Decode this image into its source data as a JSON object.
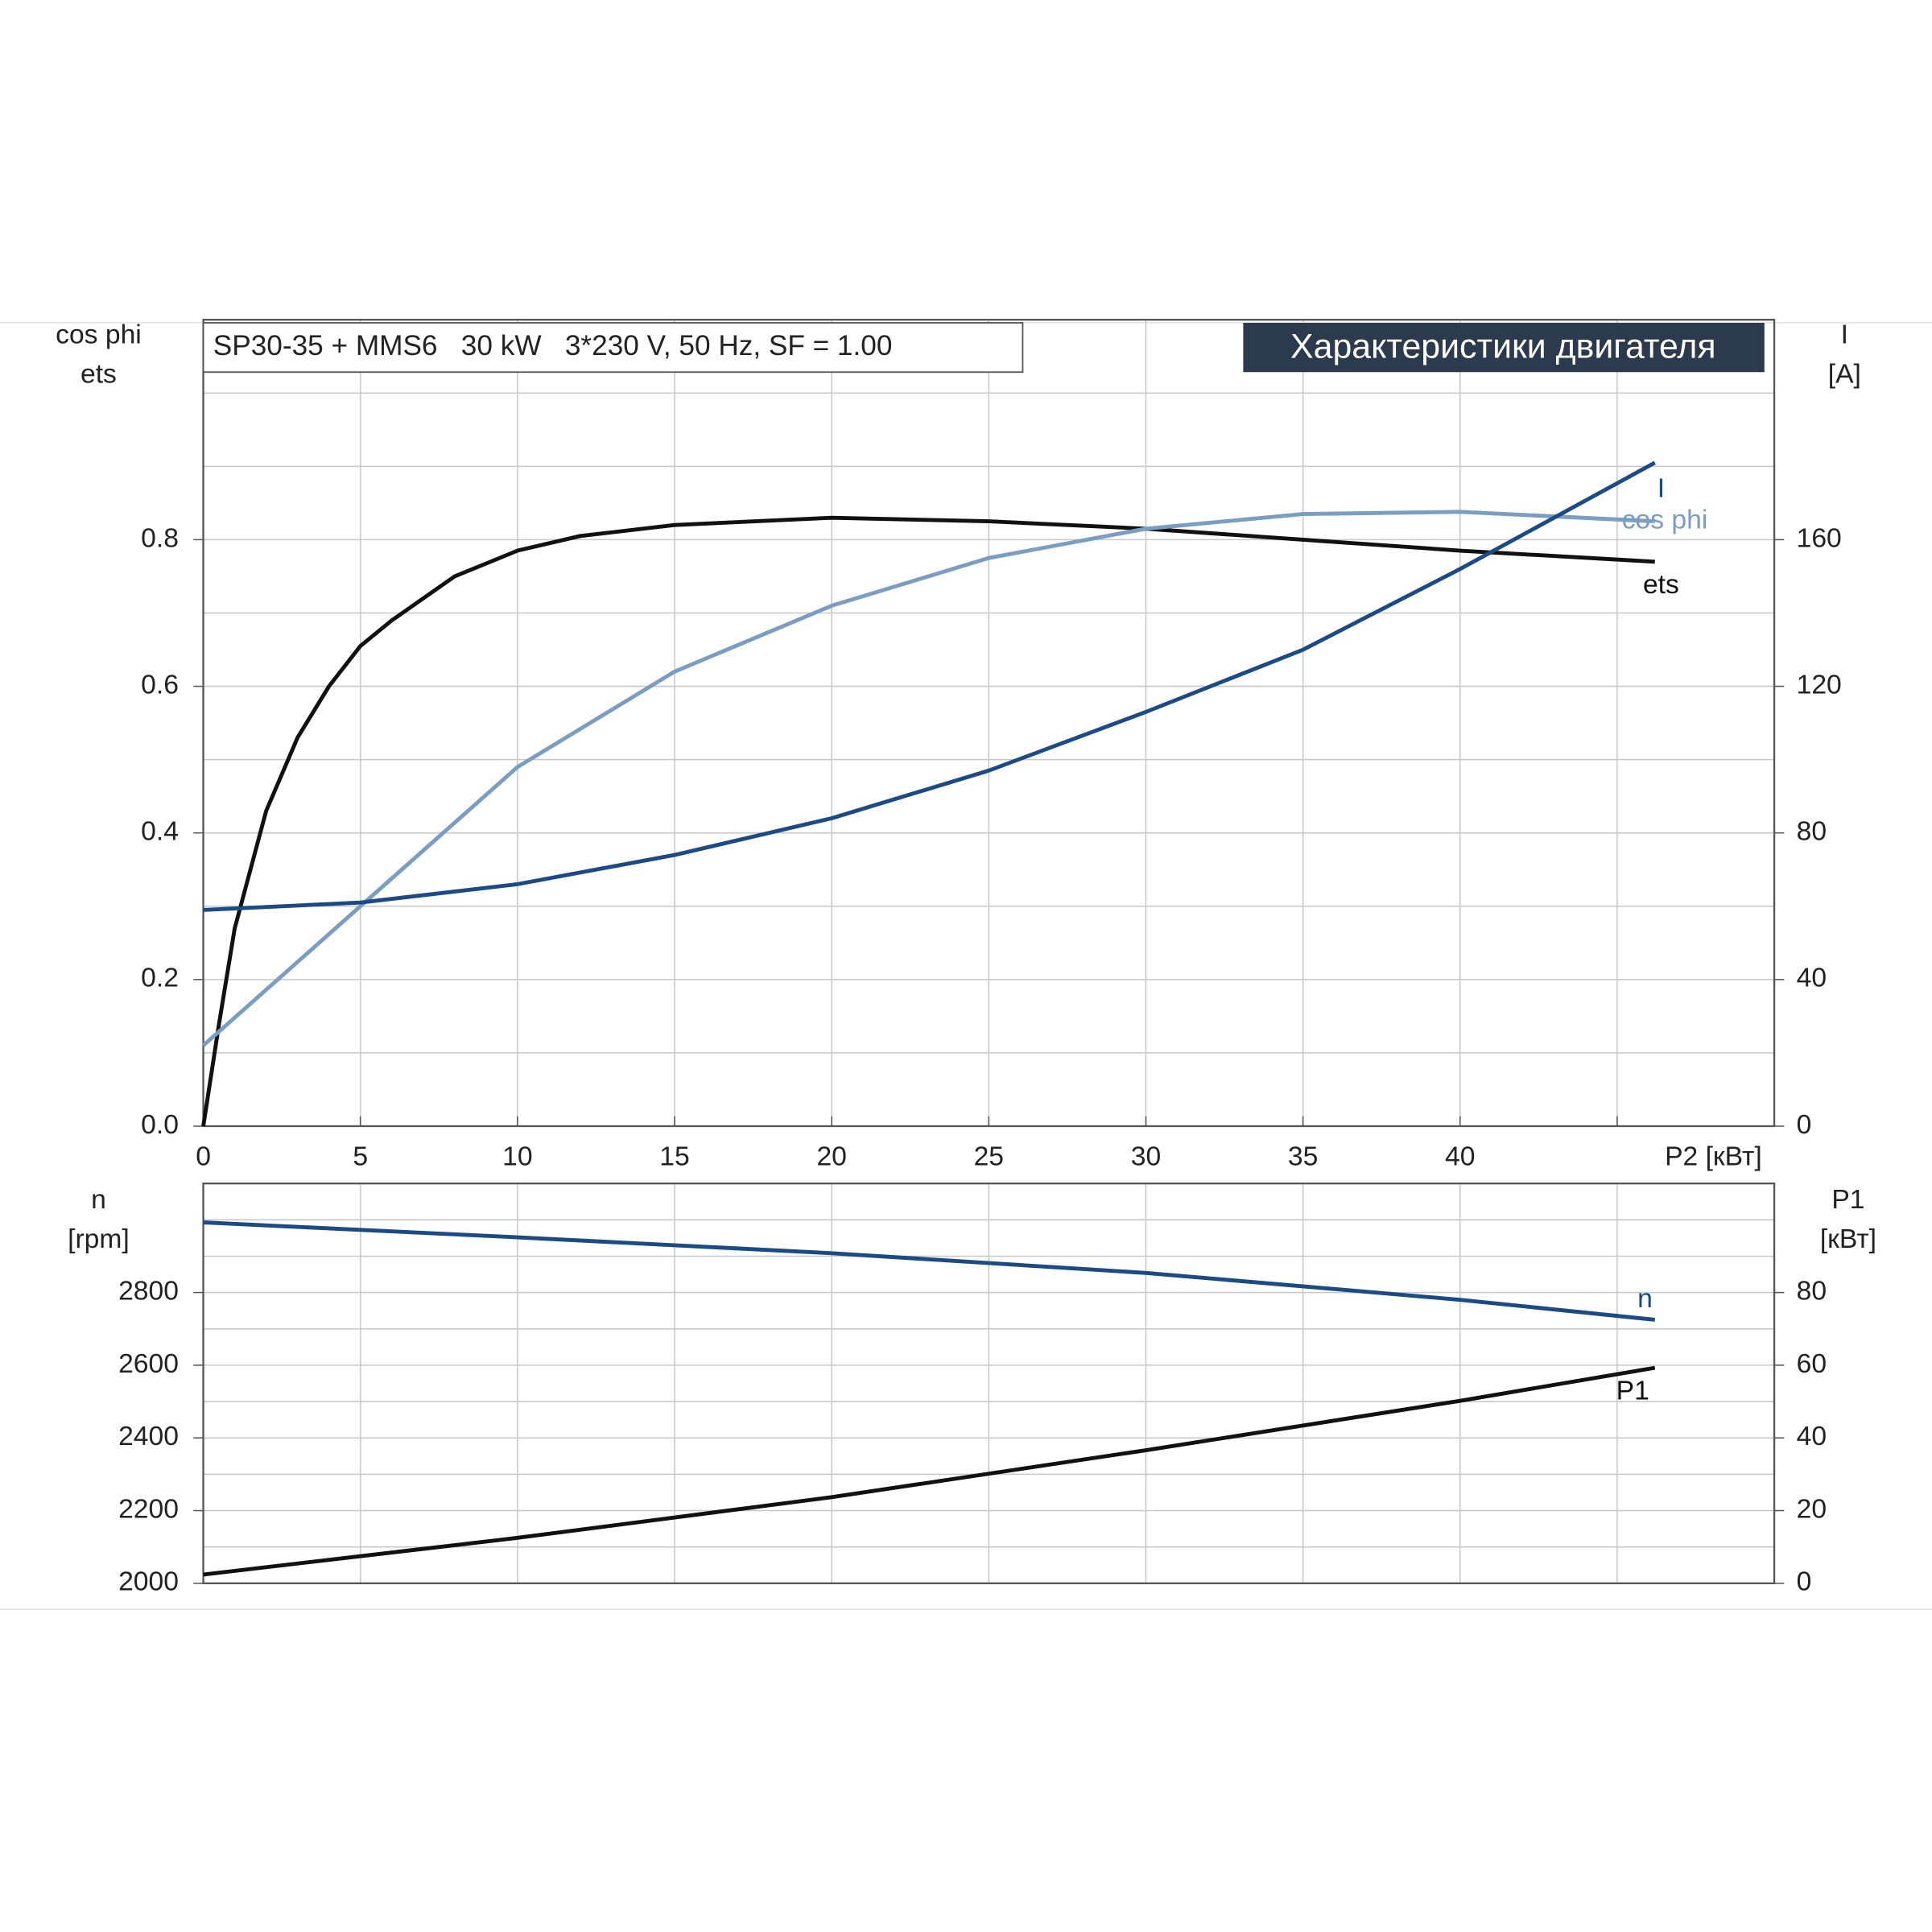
{
  "chart_data": [
    {
      "type": "line",
      "header": "SP30-35 + MMS6   30 kW   3*230 V, 50 Hz, SF = 1.00",
      "title": "Характеристики двигателя",
      "y_label": [
        "cos phi",
        "ets"
      ],
      "y2_label": [
        "I",
        "[A]"
      ],
      "x_label": "P2 [кВт]",
      "xlim": [
        0,
        50
      ],
      "xticks": [
        0,
        5,
        10,
        15,
        20,
        25,
        30,
        35,
        40
      ],
      "ylim": [
        0,
        1.1
      ],
      "yticks": [
        {
          "value": 0,
          "label": "0.0"
        },
        0.2,
        0.4,
        0.6,
        0.8
      ],
      "y2lim": [
        0,
        220
      ],
      "y2ticks": [
        0,
        40,
        80,
        120,
        160
      ],
      "grid": true,
      "series": [
        {
          "name": "ets",
          "color": "#111111",
          "x": [
            0,
            0.5,
            1,
            2,
            3,
            4,
            5,
            6,
            8,
            10,
            12,
            15,
            20,
            25,
            30,
            35,
            40,
            46.2
          ],
          "values": [
            0,
            0.14,
            0.27,
            0.43,
            0.53,
            0.6,
            0.655,
            0.69,
            0.75,
            0.785,
            0.805,
            0.82,
            0.83,
            0.825,
            0.815,
            0.8,
            0.785,
            0.77
          ]
        },
        {
          "name": "cos phi",
          "color": "#7b9dc2",
          "x": [
            0,
            5,
            10,
            15,
            20,
            25,
            30,
            35,
            40,
            46.2
          ],
          "values": [
            0.11,
            0.3,
            0.49,
            0.62,
            0.71,
            0.775,
            0.815,
            0.835,
            0.838,
            0.825
          ]
        },
        {
          "name": "I",
          "color": "#1c4a85",
          "axis": "y2",
          "x": [
            0,
            5,
            10,
            15,
            20,
            25,
            30,
            35,
            40,
            46.2
          ],
          "values": [
            59,
            61,
            66,
            74,
            84,
            97,
            113,
            130,
            152,
            181
          ]
        }
      ]
    },
    {
      "type": "line",
      "y_label": [
        "n",
        "[rpm]"
      ],
      "y2_label": [
        "P1",
        "[кВт]"
      ],
      "xlim": [
        0,
        50
      ],
      "ylim": [
        2000,
        3100
      ],
      "yticks": [
        2000,
        2200,
        2400,
        2600,
        2800
      ],
      "y2lim": [
        0,
        110
      ],
      "y2ticks": [
        0,
        20,
        40,
        60,
        80
      ],
      "grid": true,
      "series": [
        {
          "name": "n",
          "color": "#1c4a85",
          "x": [
            0,
            10,
            20,
            30,
            40,
            46.2
          ],
          "values": [
            2993,
            2952,
            2908,
            2854,
            2780,
            2725
          ]
        },
        {
          "name": "P1",
          "color": "#111111",
          "axis": "y2",
          "x": [
            0,
            10,
            20,
            30,
            40,
            46.2
          ],
          "values": [
            2.4,
            12.5,
            23.7,
            36.6,
            50.2,
            59.3
          ]
        }
      ]
    }
  ]
}
